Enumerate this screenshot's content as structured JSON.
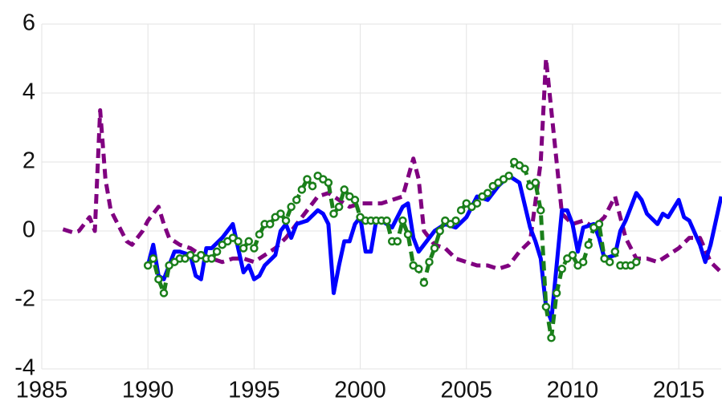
{
  "chart_data": {
    "type": "line",
    "xlim": [
      1985,
      2017
    ],
    "xticks": [
      1985,
      1990,
      1995,
      2000,
      2005,
      2010,
      2015
    ],
    "ylim": [
      -4,
      6
    ],
    "yticks": [
      -4,
      -2,
      0,
      2,
      4,
      6
    ],
    "grid": true,
    "series": [
      {
        "color": "#800080",
        "style": "dashed",
        "marker": "none",
        "x": [
          1986,
          1986.25,
          1986.5,
          1986.75,
          1987,
          1987.25,
          1987.5,
          1987.75,
          1988,
          1988.25,
          1988.5,
          1988.75,
          1989,
          1989.25,
          1989.5,
          1989.75,
          1990,
          1990.25,
          1990.5,
          1990.75,
          1991,
          1991.5,
          1992,
          1992.5,
          1993,
          1993.5,
          1994,
          1994.5,
          1995,
          1995.5,
          1996,
          1996.5,
          1997,
          1997.5,
          1998,
          1998.5,
          1999,
          1999.5,
          2000,
          2000.5,
          2001,
          2001.5,
          2002,
          2002.5,
          2002.75,
          2003,
          2003.5,
          2004,
          2004.5,
          2005,
          2005.5,
          2006,
          2006.5,
          2007,
          2007.5,
          2008,
          2008.5,
          2008.75,
          2009,
          2009.25,
          2009.5,
          2010,
          2010.5,
          2011,
          2011.5,
          2012,
          2012.5,
          2013,
          2013.5,
          2014,
          2014.5,
          2015,
          2015.5,
          2016,
          2016.5,
          2017
        ],
        "values": [
          0.05,
          0.0,
          -0.05,
          0.0,
          0.2,
          0.4,
          0.0,
          3.5,
          1.5,
          0.6,
          0.3,
          0.0,
          -0.3,
          -0.4,
          -0.2,
          0.0,
          0.3,
          0.5,
          0.7,
          0.2,
          -0.2,
          -0.4,
          -0.5,
          -0.7,
          -0.8,
          -0.9,
          -0.8,
          -0.8,
          -0.9,
          -0.7,
          -0.5,
          -0.2,
          0.2,
          0.6,
          1.0,
          1.1,
          0.9,
          0.7,
          0.8,
          0.8,
          0.8,
          0.9,
          1.0,
          2.1,
          1.5,
          0.0,
          -0.4,
          -0.5,
          -0.8,
          -0.9,
          -1.0,
          -1.0,
          -1.1,
          -1.0,
          -0.6,
          -0.3,
          2.0,
          5.0,
          3.5,
          2.0,
          0.5,
          0.2,
          0.3,
          0.1,
          0.4,
          1.0,
          -0.2,
          -0.8,
          -0.8,
          -0.9,
          -0.7,
          -0.5,
          -0.2,
          -0.2,
          -0.9,
          -1.2
        ]
      },
      {
        "color": "#0000ff",
        "style": "solid",
        "marker": "none",
        "x": [
          1990,
          1990.25,
          1990.5,
          1990.75,
          1991,
          1991.25,
          1991.5,
          1992,
          1992.25,
          1992.5,
          1992.75,
          1993,
          1993.5,
          1994,
          1994.25,
          1994.5,
          1994.75,
          1995,
          1995.25,
          1995.5,
          1996,
          1996.25,
          1996.5,
          1996.75,
          1997,
          1997.5,
          1998,
          1998.25,
          1998.5,
          1998.75,
          1999,
          1999.25,
          1999.5,
          1999.75,
          2000,
          2000.25,
          2000.5,
          2000.75,
          2001,
          2001.5,
          2002,
          2002.25,
          2002.5,
          2002.75,
          2003,
          2003.5,
          2004,
          2004.5,
          2005,
          2005.5,
          2006,
          2006.5,
          2007,
          2007.5,
          2008,
          2008.25,
          2008.5,
          2008.75,
          2009,
          2009.25,
          2009.5,
          2009.75,
          2010,
          2010.25,
          2010.5,
          2011,
          2011.25,
          2011.5,
          2012,
          2012.25,
          2012.5,
          2013,
          2013.25,
          2013.5,
          2014,
          2014.25,
          2014.5,
          2015,
          2015.25,
          2015.5,
          2016,
          2016.25,
          2016.5,
          2017
        ],
        "values": [
          -1.0,
          -0.4,
          -1.3,
          -1.4,
          -1.0,
          -0.6,
          -0.6,
          -0.7,
          -1.3,
          -1.4,
          -0.5,
          -0.5,
          -0.2,
          0.2,
          -0.5,
          -1.2,
          -1.0,
          -1.4,
          -1.3,
          -1.0,
          -0.7,
          0.0,
          0.2,
          -0.2,
          0.2,
          0.3,
          0.6,
          0.5,
          0.2,
          -1.8,
          -1.0,
          -0.3,
          -0.3,
          0.2,
          0.4,
          -0.6,
          -0.6,
          0.3,
          0.3,
          0.1,
          0.7,
          0.8,
          -0.2,
          -0.6,
          -0.4,
          0.0,
          0.2,
          0.1,
          0.4,
          1.0,
          0.9,
          1.3,
          1.6,
          1.4,
          0.1,
          -0.3,
          -0.8,
          -2.2,
          -2.6,
          -1.0,
          0.6,
          0.6,
          0.2,
          -0.6,
          0.1,
          0.2,
          -0.2,
          -0.8,
          -0.7,
          0.0,
          0.3,
          1.1,
          0.9,
          0.5,
          0.2,
          0.5,
          0.4,
          0.9,
          0.4,
          0.3,
          -0.4,
          -0.9,
          -0.4,
          1.0
        ]
      },
      {
        "color": "#1a7f1a",
        "style": "dashed",
        "marker": "circle",
        "x": [
          1990,
          1990.25,
          1990.5,
          1990.75,
          1991,
          1991.25,
          1991.5,
          1991.75,
          1992,
          1992.25,
          1992.5,
          1992.75,
          1993,
          1993.25,
          1993.5,
          1993.75,
          1994,
          1994.25,
          1994.5,
          1994.75,
          1995,
          1995.25,
          1995.5,
          1995.75,
          1996,
          1996.25,
          1996.5,
          1996.75,
          1997,
          1997.25,
          1997.5,
          1997.75,
          1998,
          1998.25,
          1998.5,
          1998.75,
          1999,
          1999.25,
          1999.5,
          1999.75,
          2000,
          2000.25,
          2000.5,
          2000.75,
          2001,
          2001.25,
          2001.5,
          2001.75,
          2002,
          2002.25,
          2002.5,
          2002.75,
          2003,
          2003.25,
          2003.5,
          2003.75,
          2004,
          2004.25,
          2004.5,
          2004.75,
          2005,
          2005.25,
          2005.5,
          2005.75,
          2006,
          2006.25,
          2006.5,
          2006.75,
          2007,
          2007.25,
          2007.5,
          2007.75,
          2008,
          2008.25,
          2008.5,
          2008.75,
          2009,
          2009.25,
          2009.5,
          2009.75,
          2010,
          2010.25,
          2010.5,
          2010.75,
          2011,
          2011.25,
          2011.5,
          2011.75,
          2012,
          2012.25,
          2012.5,
          2012.75,
          2013
        ],
        "values": [
          -1.0,
          -0.8,
          -1.4,
          -1.8,
          -1.0,
          -0.9,
          -0.8,
          -0.8,
          -0.7,
          -0.8,
          -0.7,
          -0.8,
          -0.8,
          -0.6,
          -0.4,
          -0.3,
          -0.2,
          -0.3,
          -0.5,
          -0.3,
          -0.5,
          -0.1,
          0.2,
          0.2,
          0.4,
          0.5,
          0.3,
          0.7,
          0.9,
          1.2,
          1.5,
          1.3,
          1.6,
          1.5,
          1.4,
          0.5,
          0.7,
          1.2,
          1.0,
          0.9,
          0.4,
          0.3,
          0.3,
          0.3,
          0.3,
          0.3,
          -0.3,
          -0.3,
          0.3,
          -0.1,
          -1.0,
          -1.1,
          -1.5,
          -0.9,
          -0.5,
          0.0,
          0.3,
          0.2,
          0.3,
          0.6,
          0.8,
          0.7,
          0.8,
          1.0,
          1.1,
          1.3,
          1.4,
          1.5,
          1.6,
          2.0,
          1.9,
          1.8,
          1.3,
          1.4,
          0.6,
          -2.2,
          -3.1,
          -1.8,
          -1.1,
          -0.8,
          -0.7,
          -1.0,
          -0.9,
          -0.4,
          0.1,
          0.2,
          -0.8,
          -0.9,
          -0.6,
          -1.0,
          -1.0,
          -1.0,
          -0.9
        ]
      }
    ]
  }
}
